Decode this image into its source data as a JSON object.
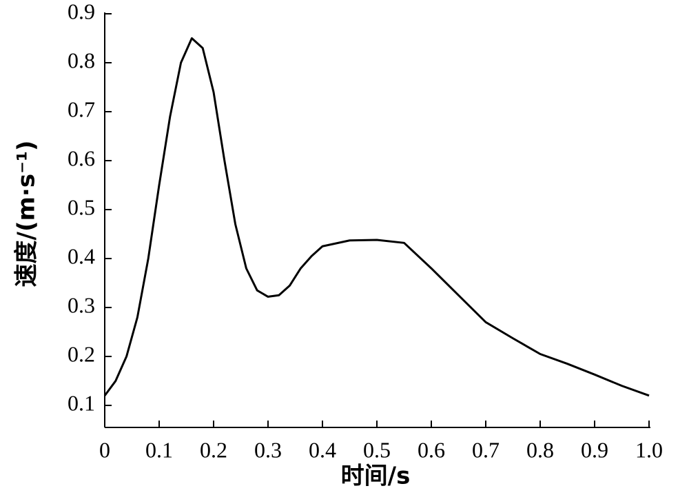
{
  "chart_data": {
    "type": "line",
    "x_label": "时间/s",
    "y_label": "速度/(m·s⁻¹)",
    "x": [
      0,
      0.02,
      0.04,
      0.06,
      0.08,
      0.1,
      0.12,
      0.14,
      0.16,
      0.18,
      0.2,
      0.22,
      0.24,
      0.26,
      0.28,
      0.3,
      0.32,
      0.34,
      0.36,
      0.38,
      0.4,
      0.45,
      0.5,
      0.55,
      0.6,
      0.65,
      0.7,
      0.75,
      0.8,
      0.85,
      0.9,
      0.95,
      1.0
    ],
    "series": [
      {
        "color": "#000000",
        "values": [
          0.12,
          0.15,
          0.2,
          0.28,
          0.4,
          0.55,
          0.69,
          0.8,
          0.85,
          0.83,
          0.74,
          0.6,
          0.47,
          0.38,
          0.335,
          0.322,
          0.325,
          0.345,
          0.38,
          0.405,
          0.425,
          0.437,
          0.438,
          0.432,
          0.38,
          0.325,
          0.27,
          0.237,
          0.205,
          0.185,
          0.163,
          0.14,
          0.12
        ]
      }
    ],
    "xlim": [
      0,
      1.0
    ],
    "xticks": [
      0,
      0.1,
      0.2,
      0.3,
      0.4,
      0.5,
      0.6,
      0.7,
      0.8,
      0.9,
      {
        "value": 1.0,
        "label": "1.0"
      }
    ],
    "ylim": [
      0.055,
      0.9
    ],
    "yticks": [
      0.1,
      0.2,
      0.3,
      0.4,
      0.5,
      0.6,
      0.7,
      0.8,
      0.9
    ],
    "grid": false
  }
}
